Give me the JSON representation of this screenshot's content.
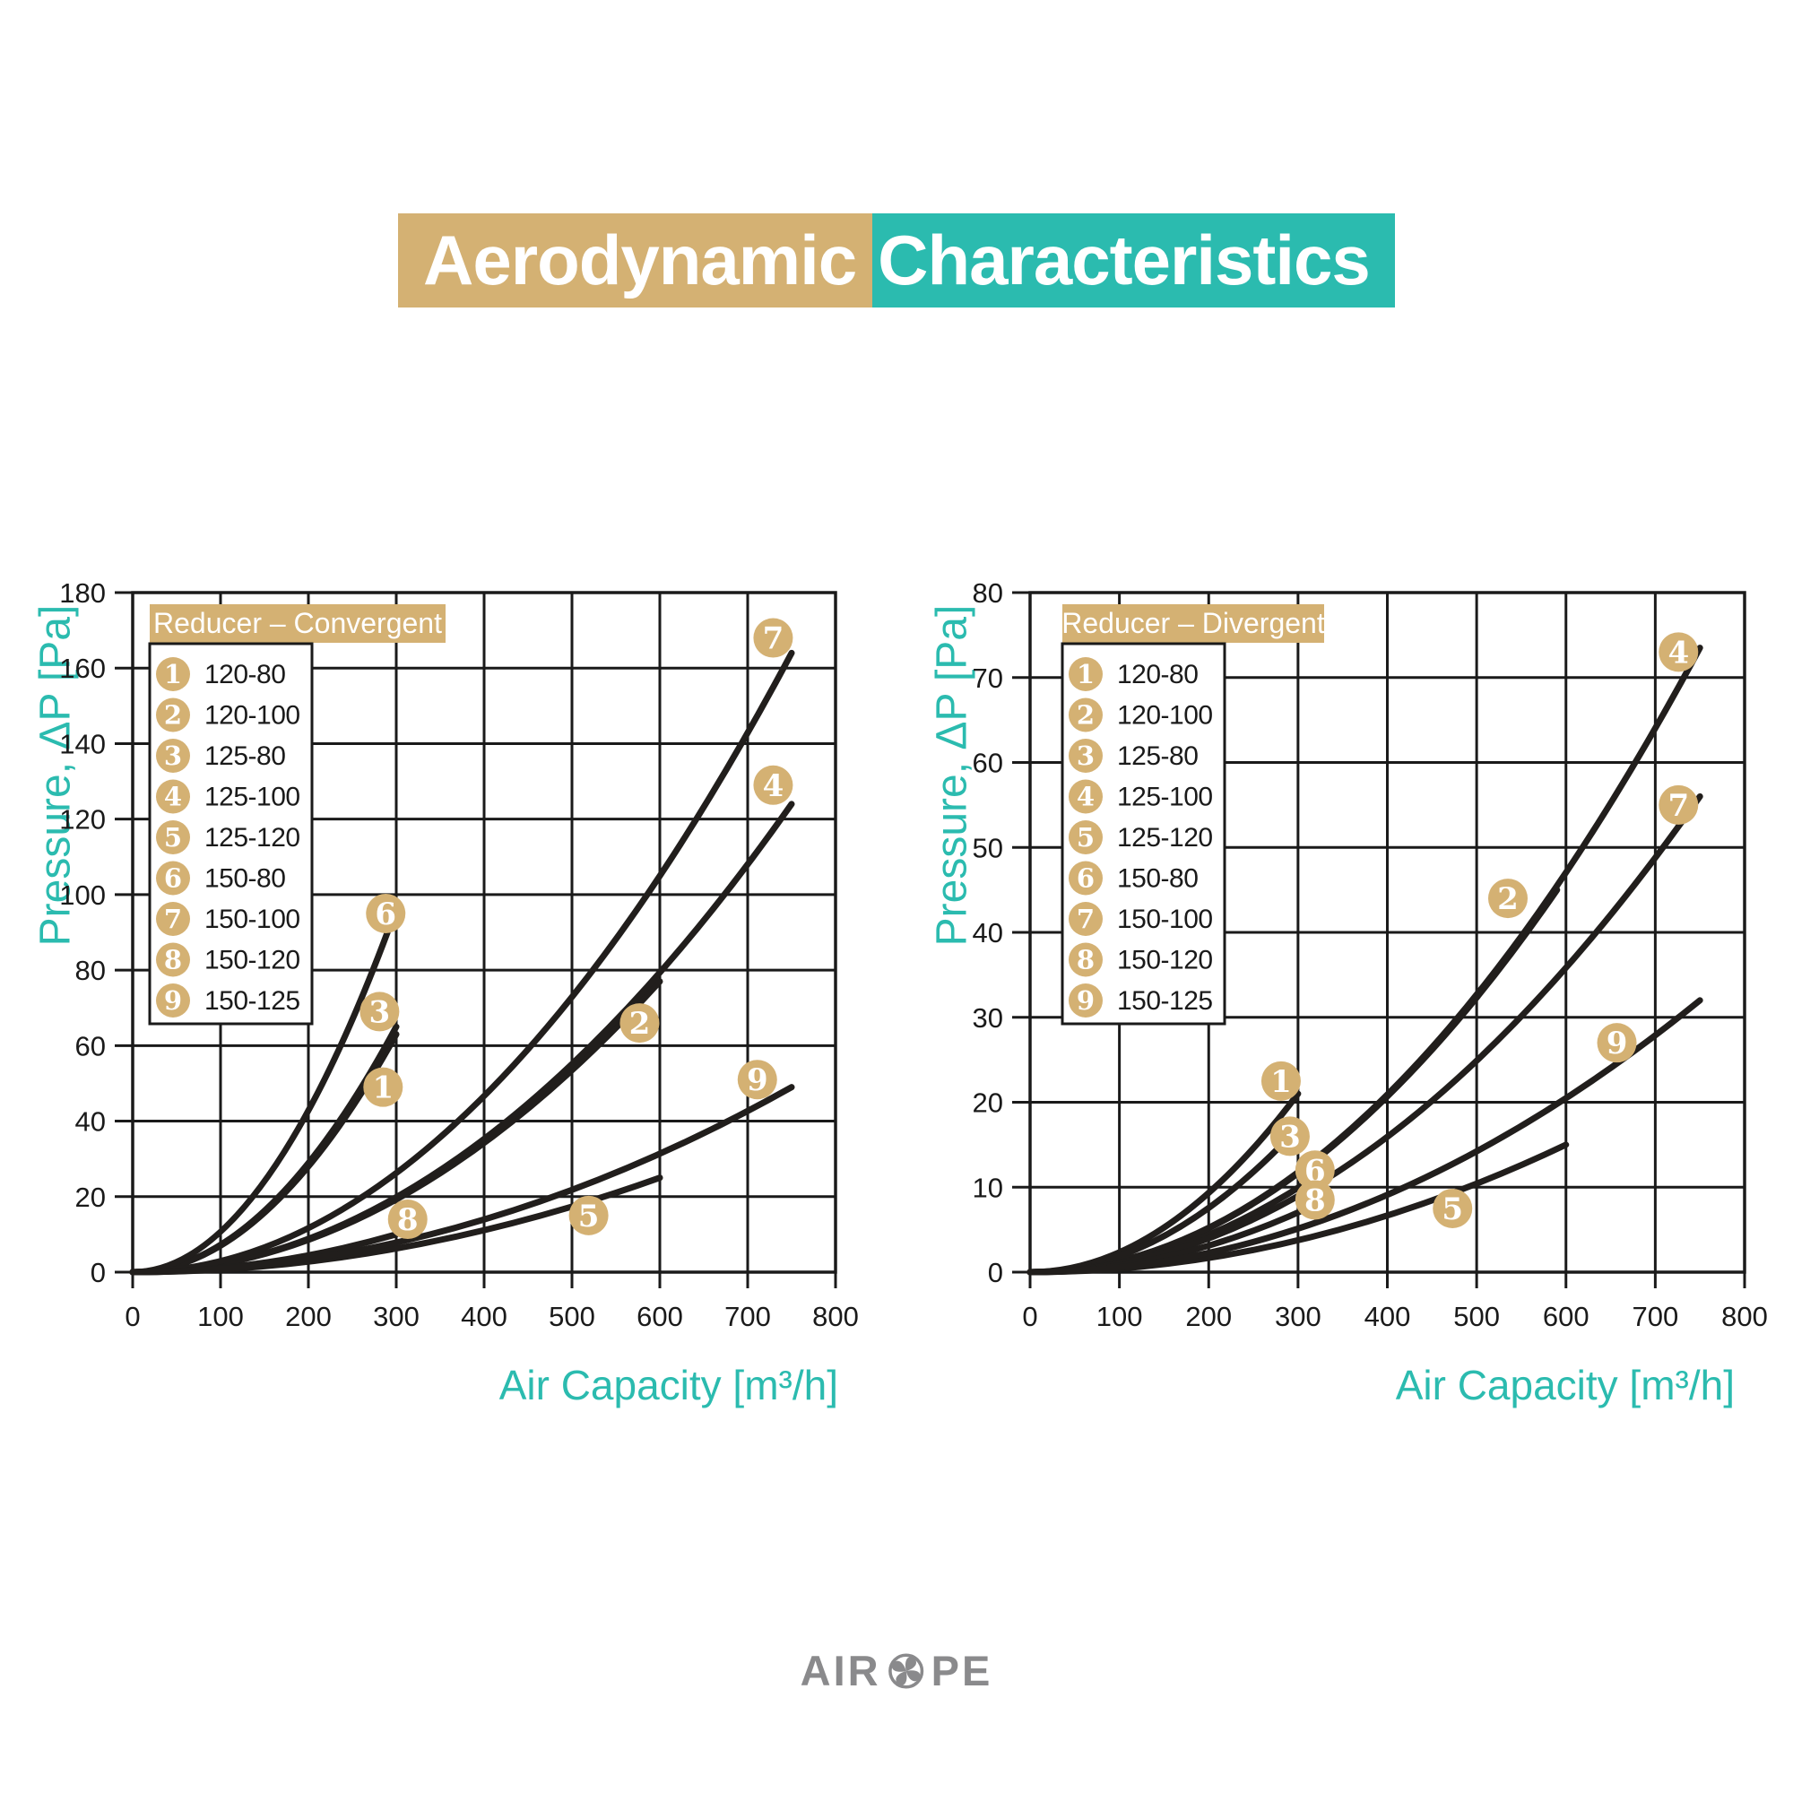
{
  "header": {
    "title_left": "Aerodynamic",
    "title_right": "Characteristics"
  },
  "footer": {
    "brand_pre": "AIR",
    "brand_post": "PE",
    "fan_icon": "fan-icon"
  },
  "colors": {
    "tan": "#D4B173",
    "teal": "#2BBBAF",
    "ink": "#1A1A1A",
    "curve_black": "#211E1C",
    "logo_gray": "#8A8A8C",
    "white": "#FFFFFF"
  },
  "chart_data": [
    {
      "type": "line",
      "title": "Reducer – Convergent",
      "legend_title": "Reducer – Convergent",
      "legend_position": "top-left",
      "xlabel": "Air Capacity [m³/h]",
      "ylabel": "Pressure, ΔP [Pa]",
      "xlim": [
        0,
        800
      ],
      "ylim": [
        0,
        180
      ],
      "xticks": [
        0,
        100,
        200,
        300,
        400,
        500,
        600,
        700,
        800
      ],
      "yticks": [
        0,
        20,
        40,
        60,
        80,
        100,
        120,
        140,
        160,
        180
      ],
      "grid": true,
      "curve_shape": "quadratic-from-origin",
      "series": [
        {
          "id": "1",
          "name": "120-80",
          "points": [
            [
              0,
              0
            ],
            [
              100,
              7
            ],
            [
              200,
              28
            ],
            [
              300,
              63
            ]
          ],
          "badge_at": [
            285,
            49
          ]
        },
        {
          "id": "2",
          "name": "120-100",
          "points": [
            [
              0,
              0
            ],
            [
              100,
              2
            ],
            [
              200,
              8.5
            ],
            [
              300,
              19
            ],
            [
              400,
              34
            ],
            [
              500,
              53.5
            ],
            [
              600,
              77
            ]
          ],
          "badge_at": [
            577,
            66
          ]
        },
        {
          "id": "3",
          "name": "125-80",
          "points": [
            [
              0,
              0
            ],
            [
              100,
              7
            ],
            [
              200,
              29
            ],
            [
              300,
              65
            ]
          ],
          "badge_at": [
            281,
            69
          ]
        },
        {
          "id": "4",
          "name": "125-100",
          "points": [
            [
              0,
              0
            ],
            [
              100,
              2
            ],
            [
              200,
              9
            ],
            [
              300,
              20
            ],
            [
              400,
              35
            ],
            [
              500,
              55
            ],
            [
              600,
              79
            ],
            [
              700,
              108
            ],
            [
              750,
              124
            ]
          ],
          "badge_at": [
            729,
            129
          ]
        },
        {
          "id": "5",
          "name": "125-120",
          "points": [
            [
              0,
              0
            ],
            [
              100,
              0.5
            ],
            [
              200,
              3
            ],
            [
              300,
              6
            ],
            [
              400,
              11
            ],
            [
              500,
              17.5
            ],
            [
              600,
              25
            ]
          ],
          "badge_at": [
            519,
            15
          ]
        },
        {
          "id": "6",
          "name": "150-80",
          "points": [
            [
              0,
              0
            ],
            [
              100,
              10.5
            ],
            [
              200,
              43
            ],
            [
              290,
              90
            ]
          ],
          "badge_at": [
            288,
            95
          ]
        },
        {
          "id": "7",
          "name": "150-100",
          "points": [
            [
              0,
              0
            ],
            [
              100,
              3
            ],
            [
              200,
              11.5
            ],
            [
              300,
              26
            ],
            [
              400,
              46.5
            ],
            [
              500,
              73
            ],
            [
              600,
              105
            ],
            [
              700,
              143
            ],
            [
              750,
              164
            ]
          ],
          "badge_at": [
            729,
            168
          ]
        },
        {
          "id": "8",
          "name": "150-120",
          "points": [
            [
              0,
              0
            ],
            [
              100,
              1
            ],
            [
              200,
              4.5
            ],
            [
              300,
              10
            ]
          ],
          "badge_at": [
            313,
            14
          ]
        },
        {
          "id": "9",
          "name": "150-125",
          "points": [
            [
              0,
              0
            ],
            [
              100,
              1
            ],
            [
              200,
              3.5
            ],
            [
              300,
              8
            ],
            [
              400,
              14
            ],
            [
              500,
              22
            ],
            [
              600,
              31.5
            ],
            [
              700,
              42.5
            ],
            [
              750,
              49
            ]
          ],
          "badge_at": [
            711,
            51
          ]
        }
      ]
    },
    {
      "type": "line",
      "title": "Reducer – Divergent",
      "legend_title": "Reducer – Divergent",
      "legend_position": "top-left",
      "xlabel": "Air Capacity [m³/h]",
      "ylabel": "Pressure, ΔP [Pa]",
      "xlim": [
        0,
        800
      ],
      "ylim": [
        0,
        80
      ],
      "xticks": [
        0,
        100,
        200,
        300,
        400,
        500,
        600,
        700,
        800
      ],
      "yticks": [
        0,
        10,
        20,
        30,
        40,
        50,
        60,
        70,
        80
      ],
      "grid": true,
      "curve_shape": "quadratic-from-origin",
      "series": [
        {
          "id": "1",
          "name": "120-80",
          "points": [
            [
              0,
              0
            ],
            [
              100,
              2.5
            ],
            [
              200,
              9.5
            ],
            [
              300,
              21
            ]
          ],
          "badge_at": [
            281,
            22.5
          ]
        },
        {
          "id": "2",
          "name": "120-100",
          "points": [
            [
              0,
              0
            ],
            [
              100,
              1.5
            ],
            [
              200,
              5
            ],
            [
              300,
              11.5
            ],
            [
              400,
              20.5
            ],
            [
              500,
              32.5
            ],
            [
              590,
              45
            ]
          ],
          "badge_at": [
            535,
            44
          ]
        },
        {
          "id": "3",
          "name": "125-80",
          "points": [
            [
              0,
              0
            ],
            [
              100,
              2
            ],
            [
              200,
              7.5
            ],
            [
              300,
              17
            ]
          ],
          "badge_at": [
            291,
            16
          ]
        },
        {
          "id": "4",
          "name": "125-100",
          "points": [
            [
              0,
              0
            ],
            [
              100,
              1.5
            ],
            [
              200,
              5
            ],
            [
              300,
              12
            ],
            [
              400,
              21
            ],
            [
              500,
              32.5
            ],
            [
              600,
              47
            ],
            [
              700,
              64
            ],
            [
              750,
              73.5
            ]
          ],
          "badge_at": [
            726,
            73
          ]
        },
        {
          "id": "5",
          "name": "125-120",
          "points": [
            [
              0,
              0
            ],
            [
              100,
              0.5
            ],
            [
              200,
              1.5
            ],
            [
              300,
              4
            ],
            [
              400,
              6.5
            ],
            [
              500,
              10.5
            ],
            [
              600,
              15
            ]
          ],
          "badge_at": [
            473,
            7.5
          ]
        },
        {
          "id": "6",
          "name": "150-80",
          "points": [
            [
              0,
              0
            ],
            [
              100,
              1
            ],
            [
              200,
              4.5
            ],
            [
              300,
              10
            ],
            [
              330,
              12
            ]
          ],
          "badge_at": [
            319,
            12
          ]
        },
        {
          "id": "7",
          "name": "150-100",
          "points": [
            [
              0,
              0
            ],
            [
              100,
              1
            ],
            [
              200,
              4
            ],
            [
              300,
              9
            ],
            [
              400,
              16
            ],
            [
              500,
              25
            ],
            [
              600,
              36
            ],
            [
              700,
              49
            ],
            [
              750,
              56
            ]
          ],
          "badge_at": [
            726,
            55
          ]
        },
        {
          "id": "8",
          "name": "150-120",
          "points": [
            [
              0,
              0
            ],
            [
              100,
              1
            ],
            [
              200,
              3
            ],
            [
              300,
              7
            ],
            [
              330,
              8.5
            ]
          ],
          "badge_at": [
            319,
            8.5
          ]
        },
        {
          "id": "9",
          "name": "150-125",
          "points": [
            [
              0,
              0
            ],
            [
              100,
              0.5
            ],
            [
              200,
              2.5
            ],
            [
              300,
              5
            ],
            [
              400,
              9
            ],
            [
              500,
              14
            ],
            [
              600,
              20.5
            ],
            [
              700,
              28
            ],
            [
              750,
              32
            ]
          ],
          "badge_at": [
            657,
            27
          ]
        }
      ]
    }
  ]
}
